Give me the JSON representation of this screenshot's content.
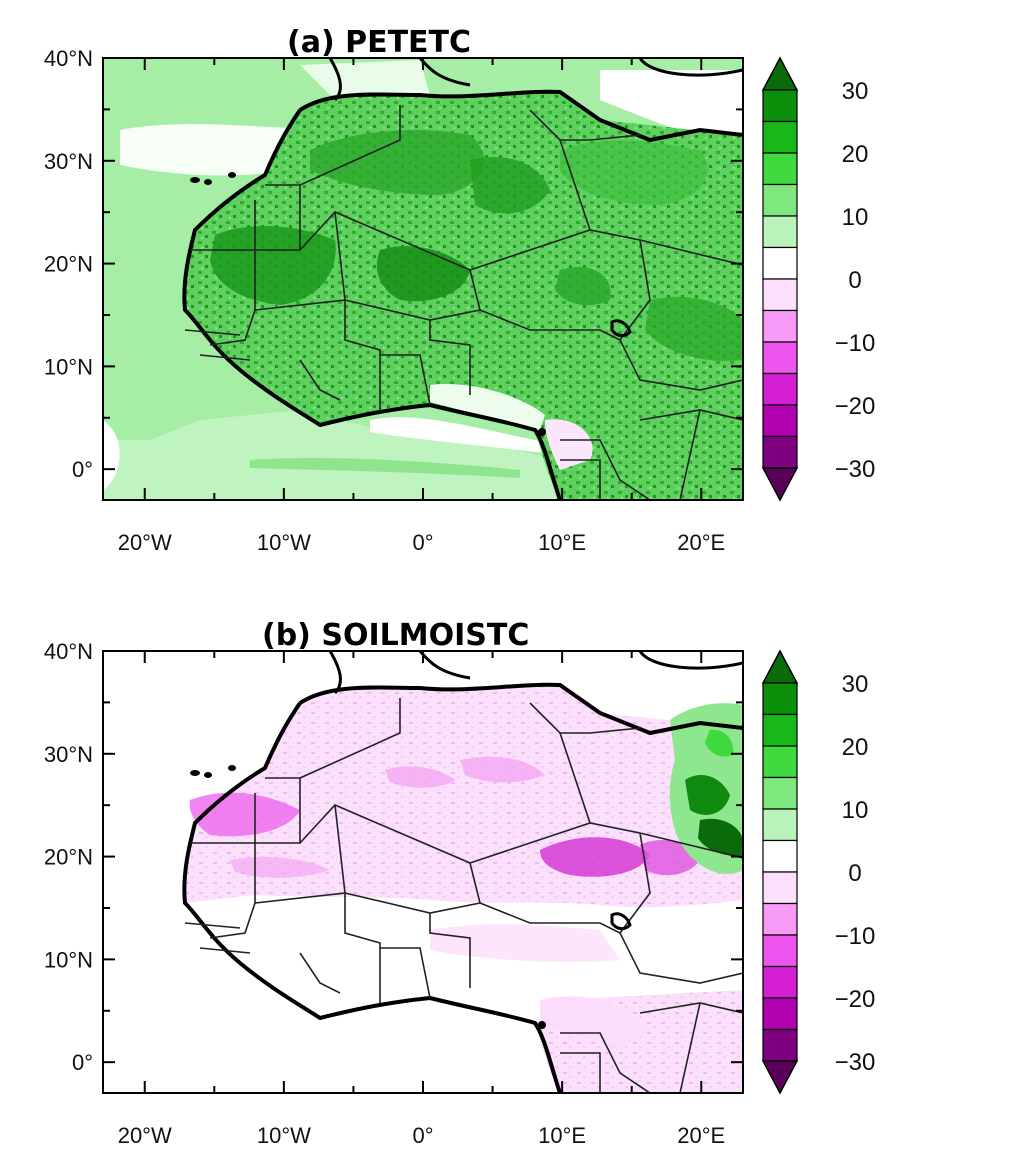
{
  "figure": {
    "panels": [
      {
        "id": "a",
        "title": "(a) PETETC",
        "lon_range": [
          -23,
          23
        ],
        "lat_range": [
          -3,
          40
        ],
        "lon_ticks": [
          {
            "value": -20,
            "label": "20°W"
          },
          {
            "value": -10,
            "label": "10°W"
          },
          {
            "value": 0,
            "label": "0°"
          },
          {
            "value": 10,
            "label": "10°E"
          },
          {
            "value": 20,
            "label": "20°E"
          }
        ],
        "lat_ticks": [
          {
            "value": 40,
            "label": "40°N"
          },
          {
            "value": 30,
            "label": "30°N"
          },
          {
            "value": 20,
            "label": "20°N"
          },
          {
            "value": 10,
            "label": "10°N"
          },
          {
            "value": 0,
            "label": "0°"
          }
        ],
        "pattern": "widespread positive anomalies, strongest (20–30) over the western and central Sahara, weak positive over the Atlantic",
        "colorbar": {
          "labels": [
            "30",
            "20",
            "10",
            "0",
            "−10",
            "−20",
            "−30"
          ],
          "levels": [
            -30,
            -25,
            -20,
            -15,
            -10,
            -5,
            0,
            5,
            10,
            15,
            20,
            25,
            30
          ],
          "colors": [
            "#5a005a",
            "#7e007e",
            "#b000b0",
            "#d21fd2",
            "#ee55ee",
            "#f79bf7",
            "#fde0fd",
            "#ffffff",
            "#b9f3b9",
            "#7ee87e",
            "#3fd83f",
            "#18b818",
            "#0b8f0b",
            "#0a6b0a"
          ]
        }
      },
      {
        "id": "b",
        "title": "(b) SOILMOISTC",
        "lon_range": [
          -23,
          23
        ],
        "lat_range": [
          -3,
          40
        ],
        "lon_ticks": [
          {
            "value": -20,
            "label": "20°W"
          },
          {
            "value": -10,
            "label": "10°W"
          },
          {
            "value": 0,
            "label": "0°"
          },
          {
            "value": 10,
            "label": "10°E"
          },
          {
            "value": 20,
            "label": "20°E"
          }
        ],
        "lat_ticks": [
          {
            "value": 40,
            "label": "40°N"
          },
          {
            "value": 30,
            "label": "30°N"
          },
          {
            "value": 20,
            "label": "20°N"
          },
          {
            "value": 10,
            "label": "10°N"
          },
          {
            "value": 0,
            "label": "0°"
          }
        ],
        "pattern": "mostly weak negative anomalies over the Sahara, stronger negative (−10 to −20) over southern Libya/Chad border, positive green over eastern Libya/Egypt border",
        "colorbar": {
          "labels": [
            "30",
            "20",
            "10",
            "0",
            "−10",
            "−20",
            "−30"
          ],
          "levels": [
            -30,
            -25,
            -20,
            -15,
            -10,
            -5,
            0,
            5,
            10,
            15,
            20,
            25,
            30
          ],
          "colors": [
            "#5a005a",
            "#7e007e",
            "#b000b0",
            "#d21fd2",
            "#ee55ee",
            "#f79bf7",
            "#fde0fd",
            "#ffffff",
            "#b9f3b9",
            "#7ee87e",
            "#3fd83f",
            "#18b818",
            "#0b8f0b",
            "#0a6b0a"
          ]
        }
      }
    ]
  }
}
